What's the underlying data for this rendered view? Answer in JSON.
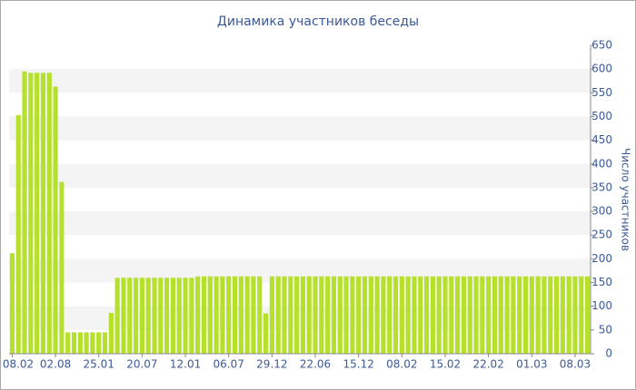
{
  "chart_data": {
    "type": "bar",
    "title": "Динамика участников беседы",
    "y_axis_label": "Число участников",
    "categories": [
      "08.02",
      null,
      null,
      null,
      null,
      null,
      null,
      "02.08",
      null,
      null,
      null,
      null,
      null,
      null,
      "25.01",
      null,
      null,
      null,
      null,
      null,
      null,
      "20.07",
      null,
      null,
      null,
      null,
      null,
      null,
      "12.01",
      null,
      null,
      null,
      null,
      null,
      null,
      "06.07",
      null,
      null,
      null,
      null,
      null,
      null,
      "29.12",
      null,
      null,
      null,
      null,
      null,
      null,
      "22.06",
      null,
      null,
      null,
      null,
      null,
      null,
      "15.12",
      null,
      null,
      null,
      null,
      null,
      null,
      "08.02",
      null,
      null,
      null,
      null,
      null,
      null,
      "15.02",
      null,
      null,
      null,
      null,
      null,
      null,
      "22.02",
      null,
      null,
      null,
      null,
      null,
      null,
      "01.03",
      null,
      null,
      null,
      null,
      null,
      null,
      "08.03",
      null,
      null
    ],
    "values": [
      212,
      503,
      595,
      592,
      592,
      592,
      592,
      563,
      362,
      45,
      45,
      45,
      45,
      45,
      45,
      45,
      86,
      160,
      160,
      160,
      160,
      160,
      160,
      160,
      160,
      160,
      160,
      160,
      160,
      160,
      163,
      163,
      163,
      163,
      163,
      163,
      163,
      163,
      163,
      163,
      163,
      85,
      163,
      163,
      163,
      163,
      163,
      163,
      163,
      163,
      163,
      163,
      163,
      163,
      163,
      163,
      163,
      163,
      163,
      163,
      163,
      163,
      163,
      163,
      163,
      163,
      163,
      163,
      163,
      163,
      163,
      163,
      163,
      163,
      163,
      163,
      163,
      163,
      163,
      163,
      163,
      163,
      163,
      163,
      163,
      163,
      163,
      163,
      163,
      163,
      163,
      163,
      163,
      163
    ],
    "color": "#b5e02b",
    "ylim": [
      0,
      650
    ],
    "yticks": [
      0,
      50,
      100,
      150,
      200,
      250,
      300,
      350,
      400,
      450,
      500,
      550,
      600,
      650
    ],
    "grid": true
  }
}
